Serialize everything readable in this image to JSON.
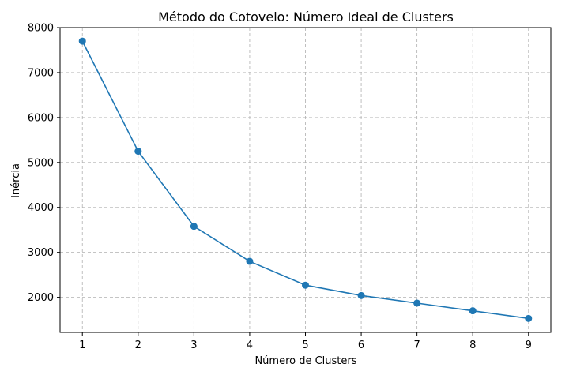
{
  "chart_data": {
    "type": "line",
    "title": "Método do Cotovelo: Número Ideal de Clusters",
    "xlabel": "Número de Clusters",
    "ylabel": "Inércia",
    "x": [
      1,
      2,
      3,
      4,
      5,
      6,
      7,
      8,
      9
    ],
    "series": [
      {
        "values": [
          7700,
          5250,
          3580,
          2800,
          2270,
          2040,
          1870,
          1700,
          1530
        ],
        "color": "#1f77b4",
        "marker": "circle"
      }
    ],
    "xlim": [
      0.6,
      9.4
    ],
    "ylim": [
      1220,
      8000
    ],
    "xticks": [
      "1",
      "2",
      "3",
      "4",
      "5",
      "6",
      "7",
      "8",
      "9"
    ],
    "yticks": [
      "2000",
      "3000",
      "4000",
      "5000",
      "6000",
      "7000",
      "8000"
    ],
    "grid": true
  }
}
